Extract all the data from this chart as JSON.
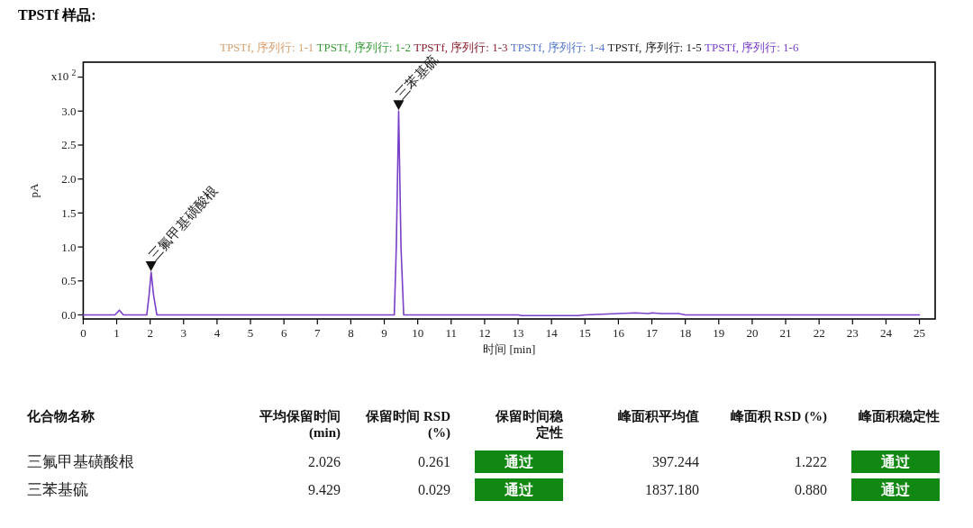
{
  "chart_data": [
    {
      "type": "line",
      "title": "TPSTf 样品:",
      "xlabel": "时间 [min]",
      "ylabel": "pA",
      "x": [
        0,
        0.95,
        1.08,
        1.2,
        1.9,
        1.97,
        2.03,
        2.1,
        2.2,
        9.3,
        9.36,
        9.43,
        9.5,
        9.58,
        13,
        13.1,
        14.8,
        15,
        15.5,
        16,
        16.5,
        16.9,
        17,
        17.3,
        17.8,
        18,
        25
      ],
      "series": [
        {
          "name": "TPSTf, 序列行: 1-1",
          "color": "#d9a070",
          "values": [
            null,
            null,
            null,
            null,
            null,
            null,
            null,
            null,
            null,
            null,
            null,
            null,
            null,
            null,
            null,
            null,
            null,
            null,
            null,
            null,
            null,
            null,
            null,
            null,
            null,
            null,
            null
          ]
        },
        {
          "name": "TPSTf, 序列行: 1-2",
          "color": "#3a9a3a",
          "values": [
            null,
            null,
            null,
            null,
            null,
            null,
            null,
            null,
            null,
            null,
            null,
            null,
            null,
            null,
            null,
            null,
            null,
            null,
            null,
            null,
            null,
            null,
            null,
            null,
            null,
            null,
            null
          ]
        },
        {
          "name": "TPSTf, 序列行: 1-3",
          "color": "#8b2030",
          "values": [
            null,
            null,
            null,
            null,
            null,
            null,
            null,
            null,
            null,
            null,
            null,
            null,
            null,
            null,
            null,
            null,
            null,
            null,
            null,
            null,
            null,
            null,
            null,
            null,
            null,
            null,
            null
          ]
        },
        {
          "name": "TPSTf, 序列行: 1-4",
          "color": "#5577cc",
          "values": [
            null,
            null,
            null,
            null,
            null,
            null,
            null,
            null,
            null,
            null,
            null,
            null,
            null,
            null,
            null,
            null,
            null,
            null,
            null,
            null,
            null,
            null,
            null,
            null,
            null,
            null,
            null
          ]
        },
        {
          "name": "TPSTf, 序列行: 1-5",
          "color": "#222222",
          "values": [
            null,
            null,
            null,
            null,
            null,
            null,
            null,
            null,
            null,
            null,
            null,
            null,
            null,
            null,
            null,
            null,
            null,
            null,
            null,
            null,
            null,
            null,
            null,
            null,
            null,
            null,
            null
          ]
        },
        {
          "name": "TPSTf, 序列行: 1-6",
          "color": "#7a3fc8",
          "values": [
            0,
            0,
            0.07,
            0,
            0,
            0.3,
            0.63,
            0.3,
            0,
            0,
            1.0,
            3.0,
            1.0,
            0,
            0,
            -0.01,
            -0.01,
            0,
            0.01,
            0.02,
            0.03,
            0.02,
            0.03,
            0.02,
            0.02,
            0,
            0
          ]
        }
      ],
      "xlim": [
        0,
        25.47
      ],
      "ylim": [
        -0.06,
        3.72
      ],
      "xticks": [
        0,
        1,
        2,
        3,
        4,
        5,
        6,
        7,
        8,
        9,
        10,
        11,
        12,
        13,
        14,
        15,
        16,
        17,
        18,
        19,
        20,
        21,
        22,
        23,
        24,
        25
      ],
      "yticks": [
        {
          "value": 0,
          "label": "0.0"
        },
        {
          "value": 0.5,
          "label": "0.5"
        },
        {
          "value": 1,
          "label": "1.0"
        },
        {
          "value": 1.5,
          "label": "1.5"
        },
        {
          "value": 2,
          "label": "2.0"
        },
        {
          "value": 2.5,
          "label": "2.5"
        },
        {
          "value": 3,
          "label": "3.0"
        },
        {
          "value": 3.5,
          "label": null
        }
      ],
      "annotations": [
        "x10 $^{2}$",
        {
          "text": "三氟甲基磺酸根",
          "x": 2.026,
          "y": 0.63
        },
        {
          "text": "三苯基硫",
          "x": 9.429,
          "y": 3.0
        }
      ],
      "legend": "top",
      "grid": false,
      "marker": "none",
      "line_style": "solid"
    },
    {
      "type": "other",
      "annotations": [
        "化合物名称",
        "平均保留时间 (min)",
        "保留时间 RSD (%)",
        "保留时间稳定性",
        "峰面积平均值",
        "峰面积 RSD (%)",
        "峰面积稳定性",
        "三氟甲基磺酸根",
        "2.026",
        "0.261",
        "通过",
        "397.244",
        "1.222",
        "通过",
        "三苯基硫",
        "9.429",
        "0.029",
        "通过",
        "1837.180",
        "0.880",
        "通过"
      ]
    }
  ]
}
